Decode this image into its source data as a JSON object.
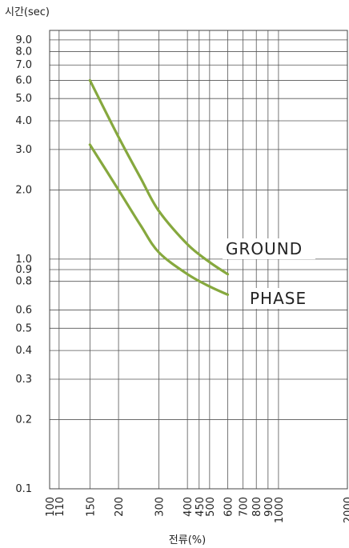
{
  "chart_data": {
    "type": "line",
    "title": "",
    "ylabel": "시간(sec)",
    "xlabel": "전류(%)",
    "x_scale": "log",
    "y_scale": "log",
    "xlim": [
      100,
      2000
    ],
    "ylim": [
      0.1,
      9.9
    ],
    "grid": true,
    "x_ticks": [
      {
        "value": 100,
        "label": "100"
      },
      {
        "value": 110,
        "label": "110"
      },
      {
        "value": 150,
        "label": "150"
      },
      {
        "value": 200,
        "label": "200"
      },
      {
        "value": 300,
        "label": "300"
      },
      {
        "value": 400,
        "label": "400"
      },
      {
        "value": 450,
        "label": "450"
      },
      {
        "value": 500,
        "label": "500"
      },
      {
        "value": 600,
        "label": "600"
      },
      {
        "value": 700,
        "label": "700"
      },
      {
        "value": 800,
        "label": "800"
      },
      {
        "value": 900,
        "label": "900"
      },
      {
        "value": 1000,
        "label": "1000"
      },
      {
        "value": 2000,
        "label": "2000"
      }
    ],
    "y_ticks": [
      {
        "value": 0.1,
        "label": "0.1"
      },
      {
        "value": 0.2,
        "label": "0.2"
      },
      {
        "value": 0.3,
        "label": "0.3"
      },
      {
        "value": 0.4,
        "label": "0.4"
      },
      {
        "value": 0.5,
        "label": "0.5"
      },
      {
        "value": 0.6,
        "label": "0.6"
      },
      {
        "value": 0.8,
        "label": "0.8"
      },
      {
        "value": 0.9,
        "label": "0.9"
      },
      {
        "value": 1.0,
        "label": "1.0"
      },
      {
        "value": 2.0,
        "label": "2.0"
      },
      {
        "value": 3.0,
        "label": "3.0"
      },
      {
        "value": 4.0,
        "label": "4.0"
      },
      {
        "value": 5.0,
        "label": "5.0"
      },
      {
        "value": 6.0,
        "label": "6.0"
      },
      {
        "value": 7.0,
        "label": "7.0"
      },
      {
        "value": 8.0,
        "label": "8.0"
      },
      {
        "value": 9.0,
        "label": "9.0"
      }
    ],
    "series": [
      {
        "name": "GROUND",
        "color": "#86a83e",
        "points": [
          [
            150,
            6.0
          ],
          [
            200,
            3.4
          ],
          [
            250,
            2.25
          ],
          [
            300,
            1.62
          ],
          [
            400,
            1.16
          ],
          [
            500,
            0.97
          ],
          [
            600,
            0.86
          ]
        ]
      },
      {
        "name": "PHASE",
        "color": "#86a83e",
        "points": [
          [
            150,
            3.15
          ],
          [
            200,
            2.0
          ],
          [
            250,
            1.4
          ],
          [
            300,
            1.07
          ],
          [
            400,
            0.86
          ],
          [
            500,
            0.76
          ],
          [
            600,
            0.7
          ]
        ]
      }
    ]
  }
}
